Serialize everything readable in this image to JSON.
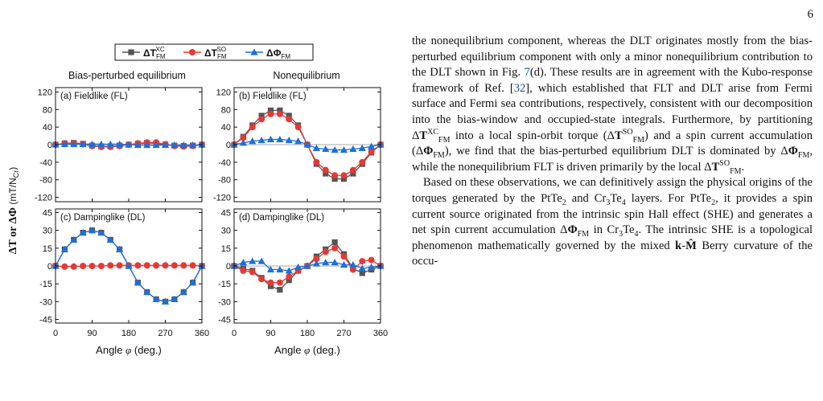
{
  "page_number": "6",
  "figure": {
    "legend": [
      {
        "label": "ΔT",
        "sub": "FM",
        "sup": "XC",
        "color": "#555555",
        "marker": "square"
      },
      {
        "label": "ΔT",
        "sub": "FM",
        "sup": "SO",
        "color": "#e53935",
        "marker": "circle"
      },
      {
        "label": "ΔΦ",
        "sub": "FM",
        "sup": "",
        "color": "#1e6fd9",
        "marker": "triangle"
      }
    ],
    "column_titles": [
      "Bias-perturbed equilibrium",
      "Nonequilibrium"
    ],
    "ylabel_main": "ΔT or ΔΦ",
    "ylabel_units": "(mT/N",
    "ylabel_units_sub": "Cr",
    "ylabel_units_end": ")",
    "xlabel_main": "Angle ",
    "xlabel_sym": "φ",
    "xlabel_units": " (deg.)",
    "xticks": [
      "0",
      "90",
      "180",
      "270",
      "360"
    ],
    "panel_titles": [
      "(a) Fieldlike (FL)",
      "(b) Fieldlike (FL)",
      "(c) Dampinglike (DL)",
      "(d) Dampinglike (DL)"
    ],
    "yticks_top": [
      "120",
      "80",
      "40",
      "0",
      "-40",
      "-80",
      "-120"
    ],
    "yticks_bottom": [
      "45",
      "30",
      "15",
      "0",
      "-15",
      "-30",
      "-45"
    ]
  },
  "chart_data": [
    {
      "type": "line",
      "title": "(a) Fieldlike (FL)",
      "xlabel": "Angle φ (deg.)",
      "ylabel": "ΔT or ΔΦ (mT/NCr)",
      "xlim": [
        0,
        360
      ],
      "ylim": [
        -130,
        130
      ],
      "x": [
        0,
        22.5,
        45,
        67.5,
        90,
        112.5,
        135,
        157.5,
        180,
        202.5,
        225,
        247.5,
        270,
        292.5,
        315,
        337.5,
        360
      ],
      "series": [
        {
          "name": "ΔT_FM^XC",
          "values": [
            0,
            3,
            4,
            2,
            -2,
            -4,
            -4,
            -2,
            0,
            2,
            4,
            3,
            0,
            -2,
            -3,
            -2,
            0
          ]
        },
        {
          "name": "ΔT_FM^SO",
          "values": [
            0,
            3,
            3,
            1,
            -3,
            -5,
            -5,
            -3,
            0,
            3,
            5,
            5,
            1,
            -3,
            -4,
            -3,
            0
          ]
        },
        {
          "name": "ΔΦ_FM",
          "values": [
            0,
            1,
            1,
            1,
            1,
            1,
            1,
            1,
            0,
            -1,
            -1,
            -1,
            -1,
            -1,
            -1,
            -1,
            0
          ]
        }
      ]
    },
    {
      "type": "line",
      "title": "(b) Fieldlike (FL)",
      "xlabel": "Angle φ (deg.)",
      "xlim": [
        0,
        360
      ],
      "ylim": [
        -130,
        130
      ],
      "x": [
        0,
        22.5,
        45,
        67.5,
        90,
        112.5,
        135,
        157.5,
        180,
        202.5,
        225,
        247.5,
        270,
        292.5,
        315,
        337.5,
        360
      ],
      "series": [
        {
          "name": "ΔT_FM^XC",
          "values": [
            0,
            18,
            44,
            66,
            78,
            78,
            66,
            44,
            0,
            -44,
            -66,
            -78,
            -78,
            -66,
            -44,
            -18,
            0
          ]
        },
        {
          "name": "ΔT_FM^SO",
          "values": [
            0,
            16,
            40,
            58,
            70,
            70,
            58,
            40,
            0,
            -40,
            -58,
            -70,
            -70,
            -58,
            -40,
            -16,
            0
          ]
        },
        {
          "name": "ΔΦ_FM",
          "values": [
            0,
            4,
            8,
            10,
            12,
            12,
            10,
            8,
            0,
            -8,
            -10,
            -12,
            -12,
            -10,
            -8,
            -4,
            0
          ]
        }
      ]
    },
    {
      "type": "line",
      "title": "(c) Dampinglike (DL)",
      "xlabel": "Angle φ (deg.)",
      "xlim": [
        0,
        360
      ],
      "ylim": [
        -48,
        48
      ],
      "x": [
        0,
        22.5,
        45,
        67.5,
        90,
        112.5,
        135,
        157.5,
        180,
        202.5,
        225,
        247.5,
        270,
        292.5,
        315,
        337.5,
        360
      ],
      "series": [
        {
          "name": "ΔT_FM^XC",
          "values": [
            0,
            14,
            22,
            28,
            30,
            28,
            22,
            14,
            0,
            -14,
            -22,
            -28,
            -30,
            -28,
            -22,
            -14,
            0
          ]
        },
        {
          "name": "ΔT_FM^SO",
          "values": [
            0,
            -0.5,
            -0.5,
            0,
            0,
            0,
            0.5,
            0.5,
            0.5,
            0.5,
            0.5,
            0.5,
            0.5,
            0.5,
            0.5,
            0.5,
            0
          ]
        },
        {
          "name": "ΔΦ_FM",
          "values": [
            0,
            14,
            22,
            28,
            30,
            28,
            22,
            14,
            0,
            -14,
            -22,
            -28,
            -30,
            -28,
            -22,
            -14,
            0
          ]
        }
      ]
    },
    {
      "type": "line",
      "title": "(d) Dampinglike (DL)",
      "xlabel": "Angle φ (deg.)",
      "xlim": [
        0,
        360
      ],
      "ylim": [
        -48,
        48
      ],
      "x": [
        0,
        22.5,
        45,
        67.5,
        90,
        112.5,
        135,
        157.5,
        180,
        202.5,
        225,
        247.5,
        270,
        292.5,
        315,
        337.5,
        360
      ],
      "series": [
        {
          "name": "ΔT_FM^XC",
          "values": [
            0,
            -2,
            -4,
            -10,
            -17,
            -20,
            -12,
            -4,
            0,
            8,
            14,
            20,
            10,
            -2,
            -6,
            -3,
            0
          ]
        },
        {
          "name": "ΔT_FM^SO",
          "values": [
            0,
            -4,
            -5,
            -11,
            -14,
            -14,
            -9,
            -4,
            0,
            6,
            12,
            15,
            8,
            -3,
            4,
            5,
            0
          ]
        },
        {
          "name": "ΔΦ_FM",
          "values": [
            0,
            3,
            4,
            4,
            -3,
            -3,
            -4,
            -1,
            0,
            2,
            3,
            3,
            1,
            1,
            -2,
            -1,
            0
          ]
        }
      ]
    }
  ],
  "text": {
    "p1": [
      {
        "t": "the nonequilibrium component, whereas the DLT originates mostly from the bias-perturbed equilibrium component with only a minor nonequilibrium contribution to the DLT shown in Fig. "
      },
      {
        "t": "7",
        "c": "cite"
      },
      {
        "t": "(d). These results are in agreement with the Kubo-response framework of Ref. ["
      },
      {
        "t": "32",
        "c": "cite"
      },
      {
        "t": "], which established that FLT and DLT arise from Fermi surface and Fermi sea contributions, respectively, consistent with our decomposition into the bias-window and occupied-state integrals. Furthermore, by partitioning Δ"
      },
      {
        "t": "T",
        "c": "bold"
      },
      {
        "t": "XC",
        "sup": true
      },
      {
        "t": "FM",
        "sub": true
      },
      {
        "t": " into a local spin-orbit torque (Δ"
      },
      {
        "t": "T",
        "c": "bold"
      },
      {
        "t": "SO",
        "sup": true
      },
      {
        "t": "FM",
        "sub": true
      },
      {
        "t": ") and a spin current accumulation (Δ"
      },
      {
        "t": "Φ",
        "c": "bold"
      },
      {
        "t": "FM",
        "sub": true
      },
      {
        "t": "), we find that the bias-perturbed equilibrium DLT is dominated by Δ"
      },
      {
        "t": "Φ",
        "c": "bold"
      },
      {
        "t": "FM",
        "sub": true
      },
      {
        "t": ", while the nonequilibrium FLT is driven primarily by the local Δ"
      },
      {
        "t": "T",
        "c": "bold"
      },
      {
        "t": "SO",
        "sup": true
      },
      {
        "t": "FM",
        "sub": true
      },
      {
        "t": "."
      }
    ],
    "p2": [
      {
        "t": "Based on these observations, we can definitively assign the physical origins of the torques generated by the PtTe"
      },
      {
        "t": "2",
        "sub": true
      },
      {
        "t": " and Cr"
      },
      {
        "t": "3",
        "sub": true
      },
      {
        "t": "Te"
      },
      {
        "t": "4",
        "sub": true
      },
      {
        "t": " layers. For PtTe"
      },
      {
        "t": "2",
        "sub": true
      },
      {
        "t": ", it provides a spin current source originated from the intrinsic spin Hall effect (SHE) and generates a net spin current accumulation Δ"
      },
      {
        "t": "Φ",
        "c": "bold"
      },
      {
        "t": "FM",
        "sub": true
      },
      {
        "t": " in Cr"
      },
      {
        "t": "3",
        "sub": true
      },
      {
        "t": "Te"
      },
      {
        "t": "4",
        "sub": true
      },
      {
        "t": ". The intrinsic SHE is a topological phenomenon mathematically governed by the mixed "
      },
      {
        "t": "k",
        "c": "bold"
      },
      {
        "t": "-"
      },
      {
        "t": "M̂",
        "c": "bold"
      },
      {
        "t": " Berry curvature of the occu-"
      }
    ]
  }
}
